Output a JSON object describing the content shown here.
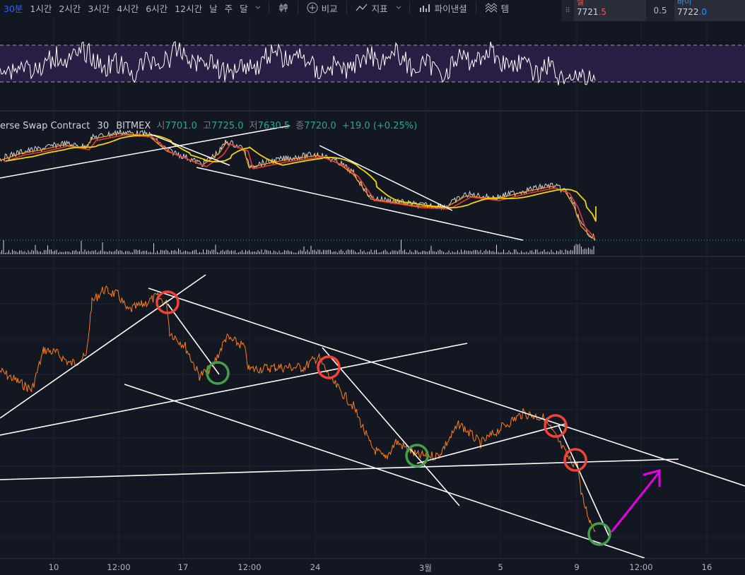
{
  "toolbar": {
    "timeframes": [
      "30분",
      "1시간",
      "2시간",
      "3시간",
      "4시간",
      "6시간",
      "12시간",
      "날",
      "주",
      "달"
    ],
    "compare_label": "비교",
    "indicators_label": "지표",
    "financials_label": "파이낸셜",
    "templates_label": "템"
  },
  "orderbox": {
    "sell_label": "셀",
    "sell_price_main": "7721",
    "sell_price_dec": ".5",
    "spread": "0.5",
    "buy_label": "바이",
    "buy_price_main": "7722",
    "buy_price_dec": ".0"
  },
  "legend": {
    "symbol": "erse Swap Contract",
    "interval": "30",
    "exchange": "BITMEX",
    "open_label": "시",
    "open": "7701.0",
    "high_label": "고",
    "high": "7725.0",
    "low_label": "저",
    "low": "7630.5",
    "close_label": "종",
    "close": "7720.0",
    "change": "+19.0 (+0.25%)"
  },
  "x_axis": {
    "labels": [
      "10",
      "12:00",
      "17",
      "12:00",
      "24",
      "3월",
      "5",
      "9",
      "12:00",
      "16"
    ]
  },
  "colors": {
    "background": "#131722",
    "rsi_band": "#2a1e45",
    "price_orange": "#ff7f0e",
    "ema_yellow": "#f0d500",
    "ema_red": "#e53935",
    "circle_red": "#f44336",
    "circle_green": "#43a047",
    "arrow_magenta": "#e600e6"
  }
}
